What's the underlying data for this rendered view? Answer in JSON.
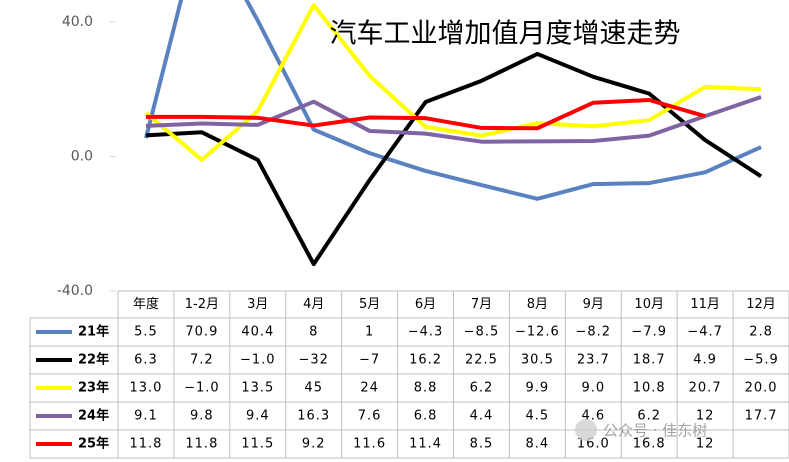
{
  "chart_data": {
    "type": "line",
    "title": "汽车工业增加值月度增速走势",
    "watermark": "公众号 · 佳东树",
    "categories": [
      "年度",
      "1-2月",
      "3月",
      "4月",
      "5月",
      "6月",
      "7月",
      "8月",
      "9月",
      "10月",
      "11月",
      "12月"
    ],
    "ylim": [
      -40,
      40
    ],
    "yticks": [
      {
        "value": 40,
        "label": "40.0"
      },
      {
        "value": 0,
        "label": "0.0"
      },
      {
        "value": -40,
        "label": "-40.0"
      }
    ],
    "series": [
      {
        "name": "21年",
        "color": "#5a82c0",
        "values": [
          5.5,
          70.9,
          40.4,
          8,
          1,
          -4.3,
          -8.5,
          -12.6,
          -8.2,
          -7.9,
          -4.7,
          2.8
        ],
        "value_labels": [
          "5.5",
          "70.9",
          "40.4",
          "8",
          "1",
          "−4.3",
          "−8.5",
          "−12.6",
          "−8.2",
          "−7.9",
          "−4.7",
          "2.8"
        ]
      },
      {
        "name": "22年",
        "color": "#000000",
        "values": [
          6.3,
          7.2,
          -1.0,
          -32,
          -7,
          16.2,
          22.5,
          30.5,
          23.7,
          18.7,
          4.9,
          -5.9
        ],
        "value_labels": [
          "6.3",
          "7.2",
          "−1.0",
          "−32",
          "−7",
          "16.2",
          "22.5",
          "30.5",
          "23.7",
          "18.7",
          "4.9",
          "−5.9"
        ]
      },
      {
        "name": "23年",
        "color": "#ffff00",
        "values": [
          13.0,
          -1.0,
          13.5,
          45,
          24,
          8.8,
          6.2,
          9.9,
          9.0,
          10.8,
          20.7,
          20.0
        ],
        "value_labels": [
          "13.0",
          "−1.0",
          "13.5",
          "45",
          "24",
          "8.8",
          "6.2",
          "9.9",
          "9.0",
          "10.8",
          "20.7",
          "20.0"
        ]
      },
      {
        "name": "24年",
        "color": "#8064a2",
        "values": [
          9.1,
          9.8,
          9.4,
          16.3,
          7.6,
          6.8,
          4.4,
          4.5,
          4.6,
          6.2,
          12,
          17.7
        ],
        "value_labels": [
          "9.1",
          "9.8",
          "9.4",
          "16.3",
          "7.6",
          "6.8",
          "4.4",
          "4.5",
          "4.6",
          "6.2",
          "12",
          "17.7"
        ]
      },
      {
        "name": "25年",
        "color": "#ff0000",
        "values": [
          11.8,
          11.8,
          11.5,
          9.2,
          11.6,
          11.4,
          8.5,
          8.4,
          16.0,
          16.8,
          12,
          null
        ],
        "value_labels": [
          "11.8",
          "11.8",
          "11.5",
          "9.2",
          "11.6",
          "11.4",
          "8.5",
          "8.4",
          "16.0",
          "16.8",
          "12",
          null
        ]
      }
    ]
  }
}
